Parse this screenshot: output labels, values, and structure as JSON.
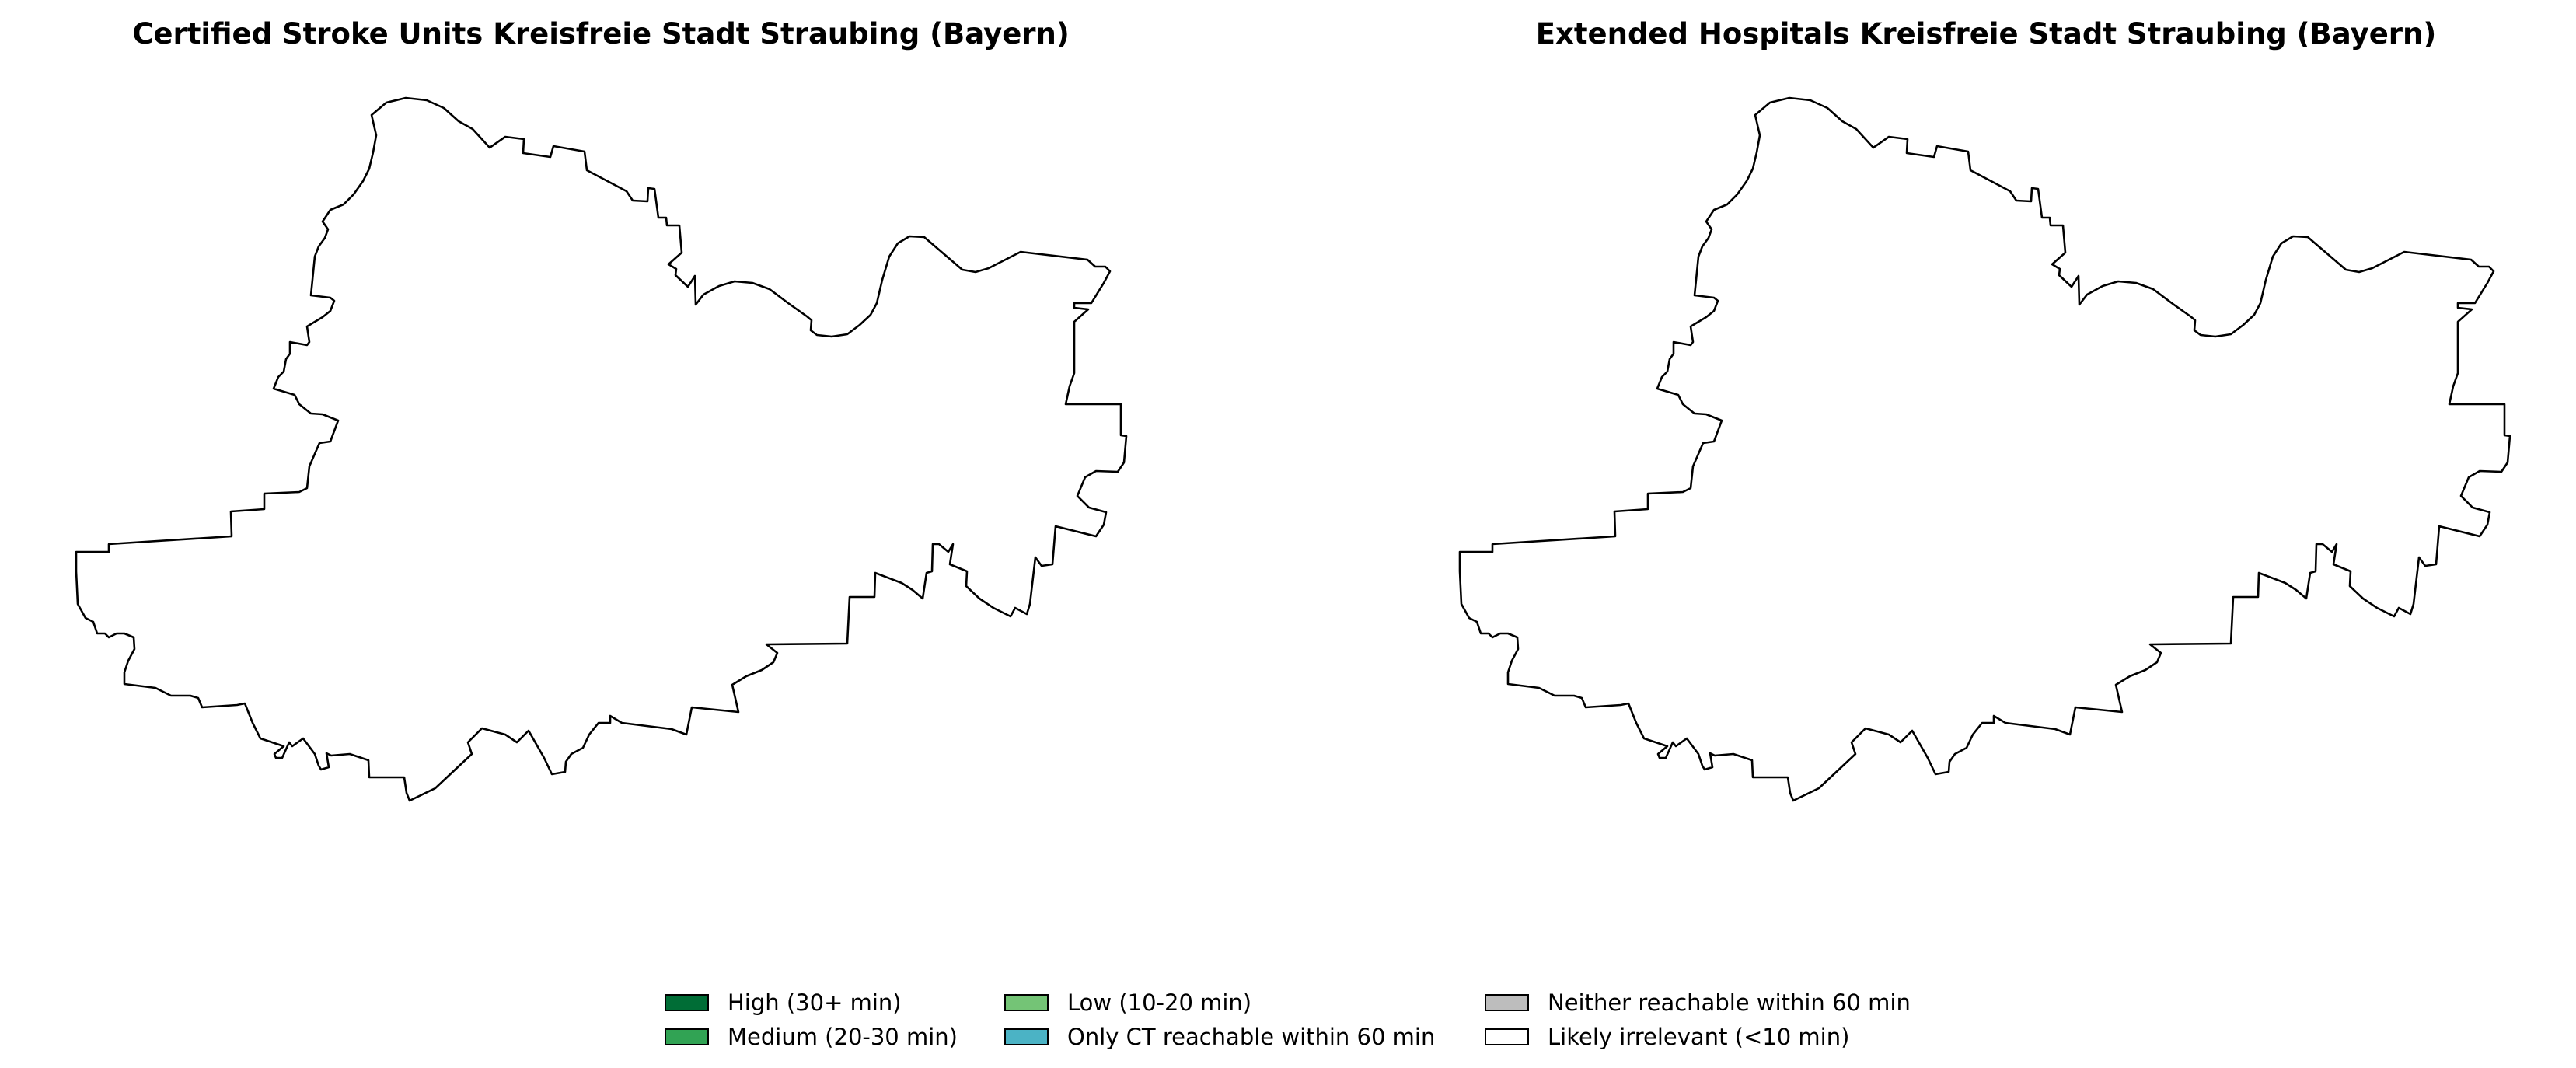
{
  "region": "Kreisfreie Stadt Straubing (Bayern)",
  "maps": [
    {
      "title": "Certified Stroke Units Kreisfreie Stadt Straubing (Bayern)",
      "fill": "#ffffff",
      "outline": "#000000"
    },
    {
      "title": "Extended Hospitals Kreisfreie Stadt Straubing (Bayern)",
      "fill": "#ffffff",
      "outline": "#000000"
    }
  ],
  "legend": {
    "items": [
      {
        "label": "High (30+ min)",
        "color": "#006d36"
      },
      {
        "label": "Medium (20-30 min)",
        "color": "#31a354"
      },
      {
        "label": "Low (10-20 min)",
        "color": "#74c476"
      },
      {
        "label": "Only CT reachable within 60 min",
        "color": "#4bb3c5"
      },
      {
        "label": "Neither reachable within 60 min",
        "color": "#bdbdbd"
      },
      {
        "label": "Likely irrelevant (<10 min)",
        "color": "#ffffff"
      }
    ]
  }
}
